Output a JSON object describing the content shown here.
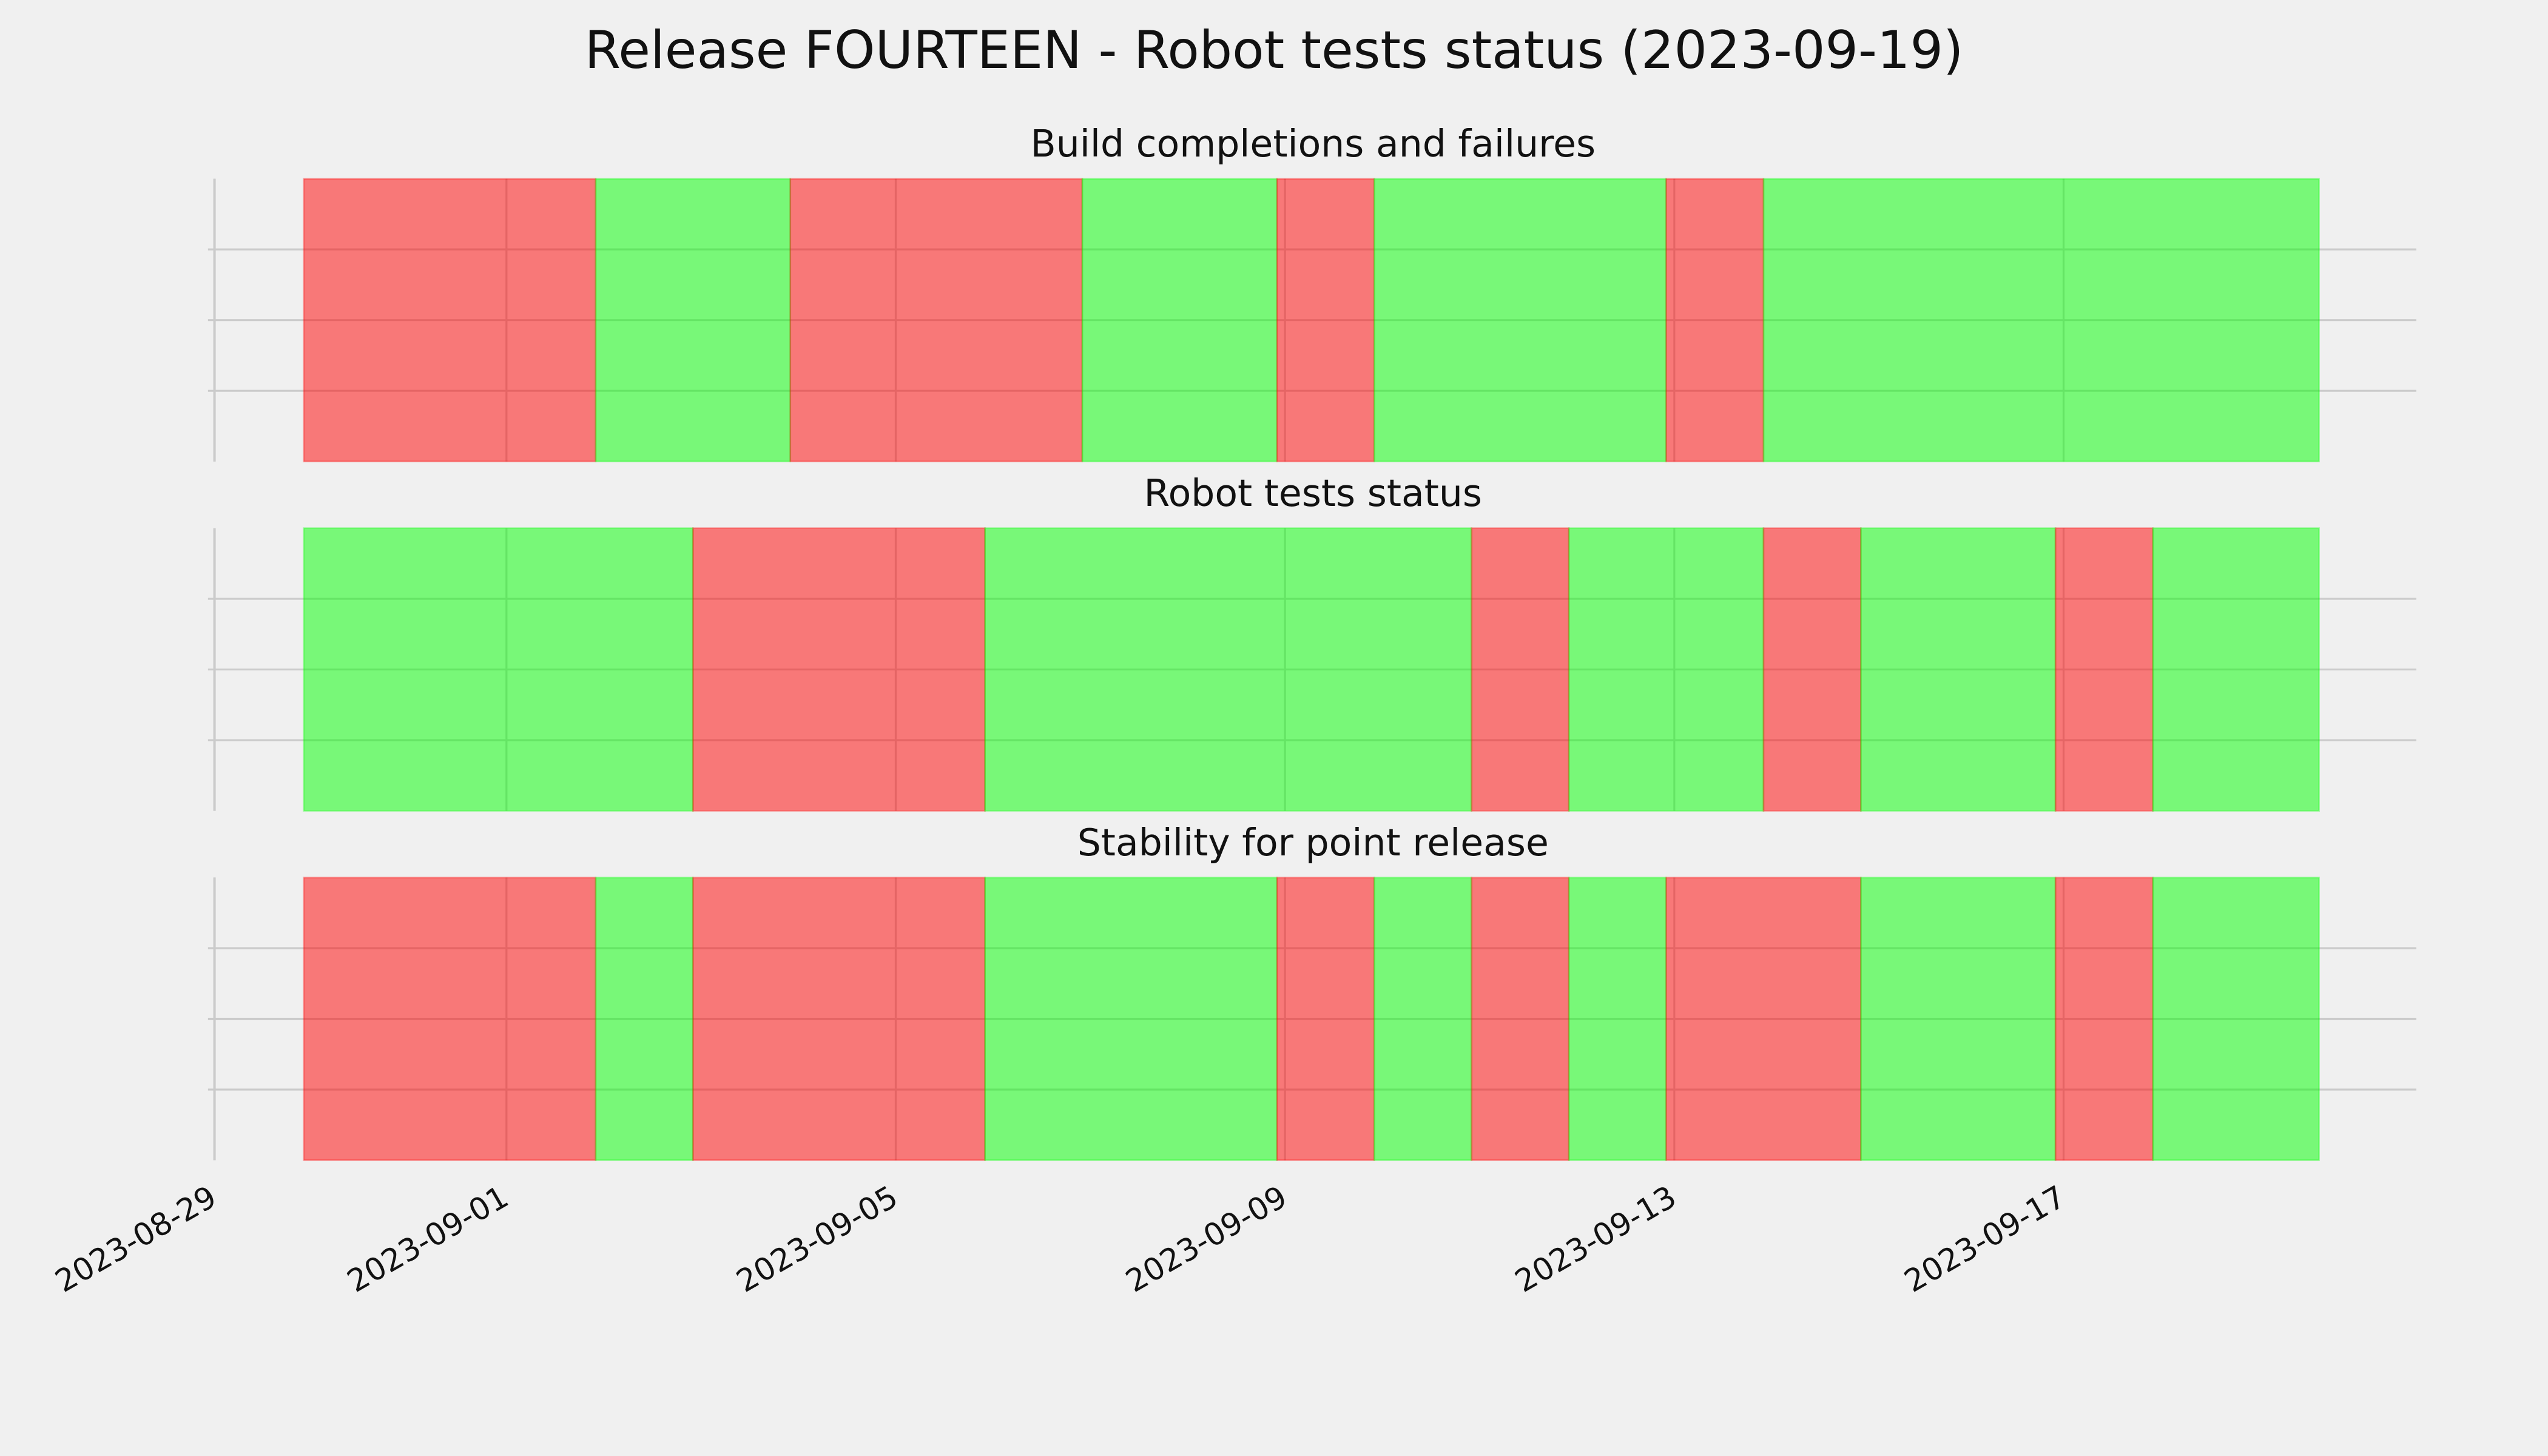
{
  "chart_data": {
    "type": "timeline",
    "title": "Release FOURTEEN - Robot tests status (2023-09-19)",
    "xlim": [
      "2023-08-29T00:00",
      "2023-09-20T15:00"
    ],
    "xticks": [
      "2023-08-29",
      "2023-09-01",
      "2023-09-05",
      "2023-09-09",
      "2023-09-13",
      "2023-09-17"
    ],
    "ylim": [
      0,
      1
    ],
    "yticks": [
      0.25,
      0.5,
      0.75
    ],
    "grid": true,
    "alpha": 0.5,
    "panels": [
      {
        "title": "Build completions and failures",
        "starts": [
          "2023-08-29T22:00",
          "2023-09-01T22:00",
          "2023-09-03T22:00",
          "2023-09-06T22:00",
          "2023-09-08T22:00",
          "2023-09-09T22:00",
          "2023-09-12T22:00",
          "2023-09-13T22:00"
        ],
        "ends": [
          "2023-09-01T22:00",
          "2023-09-03T22:00",
          "2023-09-06T22:00",
          "2023-09-08T22:00",
          "2023-09-09T22:00",
          "2023-09-12T22:00",
          "2023-09-13T22:00",
          "2023-09-19T15:00"
        ],
        "colors": [
          "red",
          "lime",
          "red",
          "lime",
          "red",
          "lime",
          "red",
          "lime"
        ]
      },
      {
        "title": "Robot tests status",
        "starts": [
          "2023-08-29T22:00",
          "2023-09-02T22:00",
          "2023-09-05T22:00",
          "2023-09-10T22:00",
          "2023-09-11T22:00",
          "2023-09-13T22:00",
          "2023-09-14T22:00",
          "2023-09-16T22:00",
          "2023-09-17T22:00"
        ],
        "ends": [
          "2023-09-02T22:00",
          "2023-09-05T22:00",
          "2023-09-10T22:00",
          "2023-09-11T22:00",
          "2023-09-13T22:00",
          "2023-09-14T22:00",
          "2023-09-16T22:00",
          "2023-09-17T22:00",
          "2023-09-19T15:00"
        ],
        "colors": [
          "lime",
          "red",
          "lime",
          "red",
          "lime",
          "red",
          "lime",
          "red",
          "lime"
        ]
      },
      {
        "title": "Stability for point release",
        "starts": [
          "2023-08-29T22:00",
          "2023-09-01T22:00",
          "2023-09-02T22:00",
          "2023-09-05T22:00",
          "2023-09-08T22:00",
          "2023-09-09T22:00",
          "2023-09-10T22:00",
          "2023-09-11T22:00",
          "2023-09-12T22:00",
          "2023-09-14T22:00",
          "2023-09-16T22:00",
          "2023-09-17T22:00"
        ],
        "ends": [
          "2023-09-01T22:00",
          "2023-09-02T22:00",
          "2023-09-05T22:00",
          "2023-09-08T22:00",
          "2023-09-09T22:00",
          "2023-09-10T22:00",
          "2023-09-11T22:00",
          "2023-09-12T22:00",
          "2023-09-14T22:00",
          "2023-09-16T22:00",
          "2023-09-17T22:00",
          "2023-09-19T15:00"
        ],
        "colors": [
          "red",
          "lime",
          "red",
          "lime",
          "red",
          "lime",
          "red",
          "lime",
          "red",
          "lime",
          "red",
          "lime"
        ]
      }
    ]
  }
}
